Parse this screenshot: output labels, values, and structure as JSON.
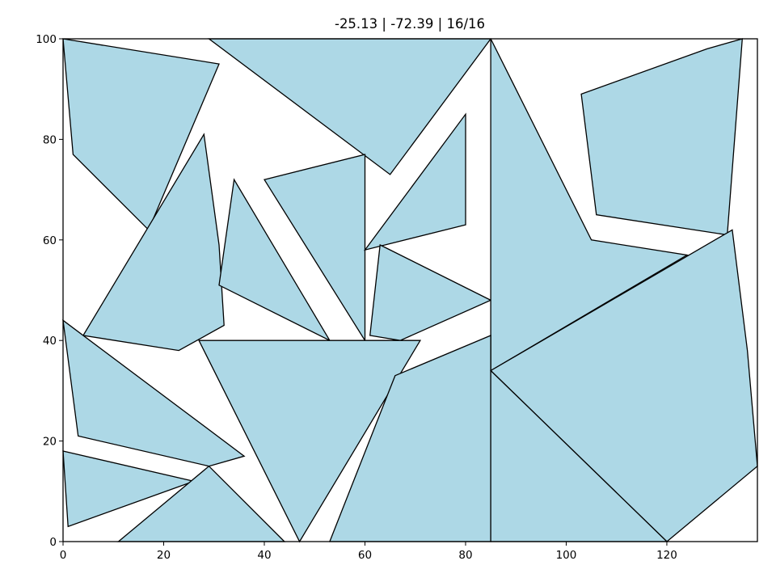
{
  "chart_data": {
    "type": "polygon-packing",
    "title": "-25.13 | -72.39 | 16/16",
    "xlabel": "",
    "ylabel": "",
    "xlim": [
      0,
      138
    ],
    "ylim": [
      0,
      100
    ],
    "xticks": [
      "0",
      "20",
      "40",
      "60",
      "80",
      "100",
      "120"
    ],
    "yticks": [
      "0",
      "20",
      "40",
      "60",
      "80",
      "100"
    ],
    "grid": false,
    "fill_color": "#add8e6",
    "edge_color": "#000000",
    "polygons": [
      [
        [
          0,
          100
        ],
        [
          31,
          95
        ],
        [
          17,
          62
        ],
        [
          2,
          77
        ]
      ],
      [
        [
          29,
          100
        ],
        [
          85,
          100
        ],
        [
          65,
          73
        ]
      ],
      [
        [
          28,
          81
        ],
        [
          31,
          59
        ],
        [
          32,
          43
        ],
        [
          23,
          38
        ],
        [
          4,
          41
        ]
      ],
      [
        [
          34,
          72
        ],
        [
          31,
          51
        ],
        [
          53,
          40
        ]
      ],
      [
        [
          40,
          72
        ],
        [
          60,
          77
        ],
        [
          60,
          40
        ]
      ],
      [
        [
          60,
          58
        ],
        [
          80,
          85
        ],
        [
          80,
          63
        ]
      ],
      [
        [
          63,
          59
        ],
        [
          85,
          48
        ],
        [
          67,
          40
        ],
        [
          61,
          41
        ]
      ],
      [
        [
          85,
          100
        ],
        [
          105,
          60
        ],
        [
          124,
          57
        ],
        [
          85,
          34
        ]
      ],
      [
        [
          103,
          89
        ],
        [
          128,
          98
        ],
        [
          135,
          100
        ],
        [
          132,
          61
        ],
        [
          106,
          65
        ]
      ],
      [
        [
          0,
          44
        ],
        [
          36,
          17
        ],
        [
          29,
          15
        ],
        [
          3,
          21
        ]
      ],
      [
        [
          0,
          18
        ],
        [
          26,
          12
        ],
        [
          1,
          3
        ]
      ],
      [
        [
          11,
          0
        ],
        [
          44,
          0
        ],
        [
          29,
          15
        ]
      ],
      [
        [
          27,
          40
        ],
        [
          71,
          40
        ],
        [
          47,
          0
        ]
      ],
      [
        [
          66,
          33
        ],
        [
          85,
          41
        ],
        [
          85,
          0
        ],
        [
          53,
          0
        ]
      ],
      [
        [
          85,
          34
        ],
        [
          133,
          62
        ],
        [
          136,
          38
        ],
        [
          138,
          15
        ],
        [
          120,
          0
        ]
      ],
      [
        [
          85,
          34
        ],
        [
          120,
          0
        ],
        [
          85,
          0
        ]
      ]
    ]
  }
}
